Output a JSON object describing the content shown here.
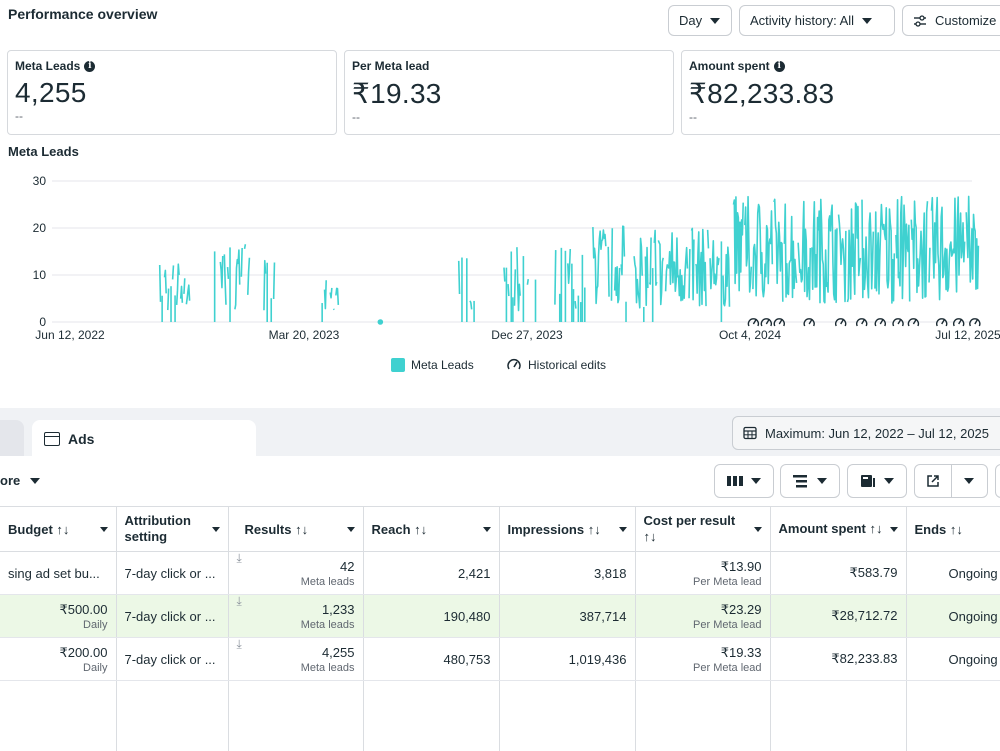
{
  "header": {
    "title": "Performance overview",
    "day_label": "Day",
    "activity_label": "Activity history: All",
    "customize_label": "Customize"
  },
  "cards": [
    {
      "label": "Meta Leads",
      "value": "4,255",
      "delta": "--",
      "info": true
    },
    {
      "label": "Per Meta lead",
      "value": "₹19.33",
      "delta": "--",
      "info": false
    },
    {
      "label": "Amount spent",
      "value": "₹82,233.83",
      "delta": "--",
      "info": true
    }
  ],
  "colors": {
    "series": "#3fd1d0",
    "highlight_row": "#ecf8e6"
  },
  "chart_data": {
    "type": "bar",
    "title": "Meta Leads",
    "x_ticks": [
      "Jun 12, 2022",
      "Mar 20, 2023",
      "Dec 27, 2023",
      "Oct 4, 2024",
      "Jul 12, 2025"
    ],
    "y_ticks": [
      0,
      10,
      20,
      30
    ],
    "ylim": [
      0,
      30
    ],
    "x_range": [
      "2022-06-12",
      "2025-07-12"
    ],
    "grid": true,
    "series": [
      {
        "name": "Meta Leads",
        "color": "#3fd1d0"
      }
    ],
    "legend": {
      "series_label": "Meta Leads",
      "edits_label": "Historical edits",
      "position": "bottom"
    },
    "bursts": [
      {
        "start": "2022-10-01",
        "end": "2022-11-08",
        "peak": 13,
        "active": 0.7
      },
      {
        "start": "2022-12-08",
        "end": "2023-01-20",
        "peak": 17,
        "active": 0.5
      },
      {
        "start": "2023-02-05",
        "end": "2023-02-20",
        "peak": 14,
        "active": 0.6
      },
      {
        "start": "2023-04-20",
        "end": "2023-05-10",
        "peak": 9,
        "active": 0.6
      },
      {
        "start": "2023-10-05",
        "end": "2023-10-25",
        "peak": 17,
        "active": 0.3
      },
      {
        "start": "2023-12-01",
        "end": "2024-01-10",
        "peak": 16,
        "active": 0.5
      },
      {
        "start": "2024-02-01",
        "end": "2024-03-10",
        "peak": 17,
        "active": 0.5
      },
      {
        "start": "2024-03-20",
        "end": "2024-04-30",
        "peak": 21,
        "active": 0.8
      },
      {
        "start": "2024-05-10",
        "end": "2024-09-05",
        "peak": 20,
        "active": 0.85
      },
      {
        "start": "2024-09-10",
        "end": "2025-07-10",
        "peak": 27,
        "active": 0.95
      }
    ],
    "points": [
      {
        "x": "2023-07-01",
        "y": 0
      }
    ],
    "edit_markers": [
      "2024-10-04",
      "2024-10-20",
      "2024-11-05",
      "2024-12-12",
      "2025-01-20",
      "2025-02-15",
      "2025-03-10",
      "2025-04-01",
      "2025-04-20",
      "2025-05-25",
      "2025-06-15",
      "2025-07-05"
    ]
  },
  "tabs": {
    "ads_label": "Ads"
  },
  "date_range": {
    "label": "Maximum: Jun 12, 2022 – Jul 12, 2025"
  },
  "toolbar": {
    "more_label": "ore"
  },
  "table": {
    "columns": [
      "Budget ↑↓",
      "Attribution setting",
      "Results ↑↓",
      "Reach ↑↓",
      "Impressions ↑↓",
      "Cost per result ↑↓",
      "Amount spent ↑↓",
      "Ends ↑↓"
    ],
    "rows": [
      {
        "budget": "sing ad set bu...",
        "budget_sub": "",
        "attribution": "7-day click or ...",
        "results": "42",
        "results_sub": "Meta leads",
        "reach": "2,421",
        "impressions": "3,818",
        "cpr": "₹13.90",
        "cpr_sub": "Per Meta lead",
        "spent": "₹583.79",
        "ends": "Ongoing"
      },
      {
        "budget": "₹500.00",
        "budget_sub": "Daily",
        "attribution": "7-day click or ...",
        "results": "1,233",
        "results_sub": "Meta leads",
        "reach": "190,480",
        "impressions": "387,714",
        "cpr": "₹23.29",
        "cpr_sub": "Per Meta lead",
        "spent": "₹28,712.72",
        "ends": "Ongoing"
      },
      {
        "budget": "₹200.00",
        "budget_sub": "Daily",
        "attribution": "7-day click or ...",
        "results": "4,255",
        "results_sub": "Meta leads",
        "reach": "480,753",
        "impressions": "1,019,436",
        "cpr": "₹19.33",
        "cpr_sub": "Per Meta lead",
        "spent": "₹82,233.83",
        "ends": "Ongoing"
      }
    ]
  }
}
